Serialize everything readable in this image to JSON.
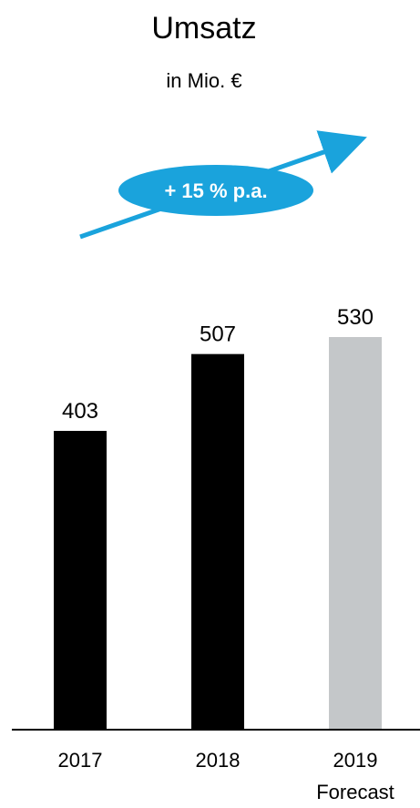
{
  "chart_data": {
    "type": "bar",
    "title": "Umsatz",
    "subtitle": "in Mio. €",
    "categories": [
      "2017",
      "2018",
      "2019"
    ],
    "category_sublabels": [
      "",
      "",
      "Forecast"
    ],
    "values": [
      403,
      507,
      530
    ],
    "value_labels": [
      "403",
      "507",
      "530"
    ],
    "colors": [
      "#000000",
      "#000000",
      "#c4c7c9"
    ],
    "ylim": [
      0,
      530
    ],
    "grid": false,
    "annotation": {
      "text": "+ 15 % p.a.",
      "arrow_color": "#1aa3dc",
      "badge_color": "#1aa3dc"
    }
  }
}
